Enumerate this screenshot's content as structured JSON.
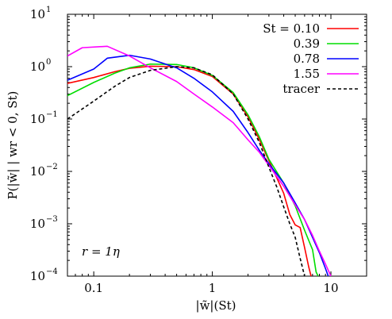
{
  "chart_data": {
    "type": "line",
    "xscale": "log",
    "yscale": "log",
    "xlim": [
      0.06,
      20
    ],
    "ylim": [
      0.0001,
      10
    ],
    "xticks": [
      {
        "value": 0.1,
        "label": "0.1"
      },
      {
        "value": 1,
        "label": "1"
      },
      {
        "value": 10,
        "label": "10"
      }
    ],
    "yticks": [
      {
        "value": 0.0001,
        "base": "10",
        "exp": "−4"
      },
      {
        "value": 0.001,
        "base": "10",
        "exp": "−3"
      },
      {
        "value": 0.01,
        "base": "10",
        "exp": "−2"
      },
      {
        "value": 0.1,
        "base": "10",
        "exp": "−1"
      },
      {
        "value": 1,
        "base": "10",
        "exp": "0"
      },
      {
        "value": 10,
        "base": "10",
        "exp": "1"
      }
    ],
    "xlabel": "|w̃|(St)",
    "ylabel": "P(|w̃| | wr < 0, St)",
    "annotation": "r = 1η",
    "grid": false,
    "legend_position": "top-right",
    "series": [
      {
        "name": "St = 0.10",
        "color": "#ff0000",
        "dash": "solid",
        "points": [
          [
            0.06,
            0.48
          ],
          [
            0.1,
            0.62
          ],
          [
            0.15,
            0.8
          ],
          [
            0.2,
            0.93
          ],
          [
            0.3,
            1.02
          ],
          [
            0.5,
            1.0
          ],
          [
            0.7,
            0.88
          ],
          [
            1.0,
            0.65
          ],
          [
            1.5,
            0.3
          ],
          [
            2.0,
            0.11
          ],
          [
            2.5,
            0.04
          ],
          [
            3.0,
            0.016
          ],
          [
            3.5,
            0.0075
          ],
          [
            4.0,
            0.0038
          ],
          [
            4.5,
            0.0015
          ],
          [
            5.0,
            0.00095
          ],
          [
            5.5,
            0.00085
          ],
          [
            6.0,
            0.00035
          ],
          [
            6.5,
            0.00015
          ],
          [
            6.8,
            0.0001
          ]
        ]
      },
      {
        "name": "0.39",
        "color": "#00dd00",
        "dash": "solid",
        "points": [
          [
            0.06,
            0.28
          ],
          [
            0.1,
            0.5
          ],
          [
            0.15,
            0.75
          ],
          [
            0.2,
            0.95
          ],
          [
            0.3,
            1.12
          ],
          [
            0.5,
            1.1
          ],
          [
            0.7,
            0.95
          ],
          [
            1.0,
            0.68
          ],
          [
            1.5,
            0.32
          ],
          [
            2.0,
            0.12
          ],
          [
            2.5,
            0.045
          ],
          [
            3.0,
            0.017
          ],
          [
            4.0,
            0.006
          ],
          [
            5.0,
            0.0022
          ],
          [
            6.0,
            0.00075
          ],
          [
            7.0,
            0.00032
          ],
          [
            7.5,
            0.00012
          ],
          [
            7.8,
            0.0001
          ]
        ]
      },
      {
        "name": "0.78",
        "color": "#0000ff",
        "dash": "solid",
        "points": [
          [
            0.06,
            0.55
          ],
          [
            0.1,
            0.9
          ],
          [
            0.13,
            1.45
          ],
          [
            0.2,
            1.65
          ],
          [
            0.3,
            1.4
          ],
          [
            0.5,
            0.95
          ],
          [
            0.7,
            0.6
          ],
          [
            1.0,
            0.33
          ],
          [
            1.5,
            0.14
          ],
          [
            2.0,
            0.055
          ],
          [
            2.5,
            0.025
          ],
          [
            3.0,
            0.014
          ],
          [
            4.0,
            0.006
          ],
          [
            5.0,
            0.0025
          ],
          [
            6.0,
            0.0012
          ],
          [
            7.0,
            0.00055
          ],
          [
            8.0,
            0.00028
          ],
          [
            9.0,
            0.00014
          ],
          [
            9.5,
            0.0001
          ]
        ]
      },
      {
        "name": "1.55",
        "color": "#ff00ff",
        "dash": "solid",
        "points": [
          [
            0.06,
            1.6
          ],
          [
            0.08,
            2.3
          ],
          [
            0.13,
            2.45
          ],
          [
            0.2,
            1.6
          ],
          [
            0.3,
            0.95
          ],
          [
            0.5,
            0.52
          ],
          [
            0.7,
            0.3
          ],
          [
            1.0,
            0.17
          ],
          [
            1.5,
            0.085
          ],
          [
            2.0,
            0.04
          ],
          [
            2.5,
            0.023
          ],
          [
            3.0,
            0.013
          ],
          [
            4.0,
            0.0052
          ],
          [
            5.0,
            0.0023
          ],
          [
            6.0,
            0.0012
          ],
          [
            7.0,
            0.0006
          ],
          [
            8.0,
            0.0003
          ],
          [
            9.0,
            0.00017
          ],
          [
            10.0,
            0.0001
          ]
        ]
      },
      {
        "name": "tracer",
        "color": "#000000",
        "dash": "dashed",
        "points": [
          [
            0.06,
            0.1
          ],
          [
            0.1,
            0.22
          ],
          [
            0.15,
            0.42
          ],
          [
            0.2,
            0.62
          ],
          [
            0.3,
            0.85
          ],
          [
            0.5,
            1.0
          ],
          [
            0.7,
            0.95
          ],
          [
            1.0,
            0.7
          ],
          [
            1.5,
            0.3
          ],
          [
            2.0,
            0.1
          ],
          [
            2.5,
            0.035
          ],
          [
            3.0,
            0.012
          ],
          [
            3.5,
            0.005
          ],
          [
            4.0,
            0.0021
          ],
          [
            4.5,
            0.001
          ],
          [
            5.0,
            0.00055
          ],
          [
            5.5,
            0.00022
          ],
          [
            6.0,
            0.0001
          ]
        ]
      }
    ]
  }
}
